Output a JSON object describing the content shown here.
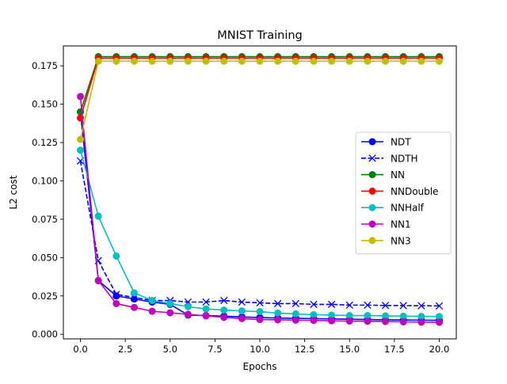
{
  "chart_data": {
    "type": "line",
    "title": "MNIST Training",
    "xlabel": "Epochs",
    "ylabel": "L2 cost",
    "xlim": [
      -0.95,
      20.95
    ],
    "ylim": [
      -0.003,
      0.188
    ],
    "xticks": [
      0.0,
      2.5,
      5.0,
      7.5,
      10.0,
      12.5,
      15.0,
      17.5,
      20.0
    ],
    "xtick_labels": [
      "0.0",
      "2.5",
      "5.0",
      "7.5",
      "10.0",
      "12.5",
      "15.0",
      "17.5",
      "20.0"
    ],
    "yticks": [
      0.0,
      0.025,
      0.05,
      0.075,
      0.1,
      0.125,
      0.15,
      0.175
    ],
    "ytick_labels": [
      "0.000",
      "0.025",
      "0.050",
      "0.075",
      "0.100",
      "0.125",
      "0.150",
      "0.175"
    ],
    "grid": false,
    "legend_position": "center-right",
    "x": [
      0,
      1,
      2,
      3,
      4,
      5,
      6,
      7,
      8,
      9,
      10,
      11,
      12,
      13,
      14,
      15,
      16,
      17,
      18,
      19,
      20
    ],
    "series": [
      {
        "name": "NDT",
        "color": "#0000ff",
        "marker": "circle",
        "linestyle": "solid",
        "values": [
          0.145,
          0.035,
          0.025,
          0.023,
          0.021,
          0.0195,
          0.0125,
          0.0122,
          0.0118,
          0.0113,
          0.0109,
          0.0106,
          0.0104,
          0.0102,
          0.01,
          0.0098,
          0.0096,
          0.0094,
          0.0093,
          0.0092,
          0.0091
        ]
      },
      {
        "name": "NDTH",
        "color": "#0000ff",
        "marker": "x",
        "linestyle": "dashed",
        "values": [
          0.113,
          0.048,
          0.026,
          0.024,
          0.022,
          0.022,
          0.021,
          0.021,
          0.022,
          0.021,
          0.0205,
          0.02,
          0.02,
          0.0195,
          0.0195,
          0.019,
          0.019,
          0.0188,
          0.0187,
          0.0186,
          0.0185
        ]
      },
      {
        "name": "NN",
        "color": "#008000",
        "marker": "circle",
        "linestyle": "solid",
        "values": [
          0.145,
          0.181,
          0.181,
          0.181,
          0.181,
          0.181,
          0.181,
          0.181,
          0.181,
          0.181,
          0.181,
          0.181,
          0.181,
          0.181,
          0.181,
          0.181,
          0.181,
          0.181,
          0.181,
          0.181,
          0.181
        ]
      },
      {
        "name": "NNDouble",
        "color": "#ff0000",
        "marker": "circle",
        "linestyle": "solid",
        "values": [
          0.141,
          0.18,
          0.18,
          0.18,
          0.18,
          0.18,
          0.18,
          0.18,
          0.18,
          0.18,
          0.18,
          0.18,
          0.18,
          0.18,
          0.18,
          0.18,
          0.18,
          0.18,
          0.18,
          0.18,
          0.18
        ]
      },
      {
        "name": "NNHalf",
        "color": "#00bfbf",
        "marker": "circle",
        "linestyle": "solid",
        "values": [
          0.12,
          0.077,
          0.051,
          0.027,
          0.022,
          0.02,
          0.018,
          0.0165,
          0.0158,
          0.0152,
          0.0148,
          0.0138,
          0.0133,
          0.0128,
          0.0125,
          0.0122,
          0.0122,
          0.012,
          0.0118,
          0.0117,
          0.0116
        ]
      },
      {
        "name": "NN1",
        "color": "#bf00bf",
        "marker": "circle",
        "linestyle": "solid",
        "values": [
          0.155,
          0.035,
          0.02,
          0.0175,
          0.015,
          0.014,
          0.013,
          0.012,
          0.011,
          0.0102,
          0.0096,
          0.0094,
          0.0092,
          0.009,
          0.0088,
          0.0086,
          0.0085,
          0.0083,
          0.0081,
          0.0079,
          0.0078
        ]
      },
      {
        "name": "NN3",
        "color": "#bfbf00",
        "marker": "circle",
        "linestyle": "solid",
        "values": [
          0.127,
          0.178,
          0.178,
          0.178,
          0.178,
          0.178,
          0.178,
          0.178,
          0.178,
          0.178,
          0.178,
          0.178,
          0.178,
          0.178,
          0.178,
          0.178,
          0.178,
          0.178,
          0.178,
          0.178,
          0.178
        ]
      }
    ]
  }
}
